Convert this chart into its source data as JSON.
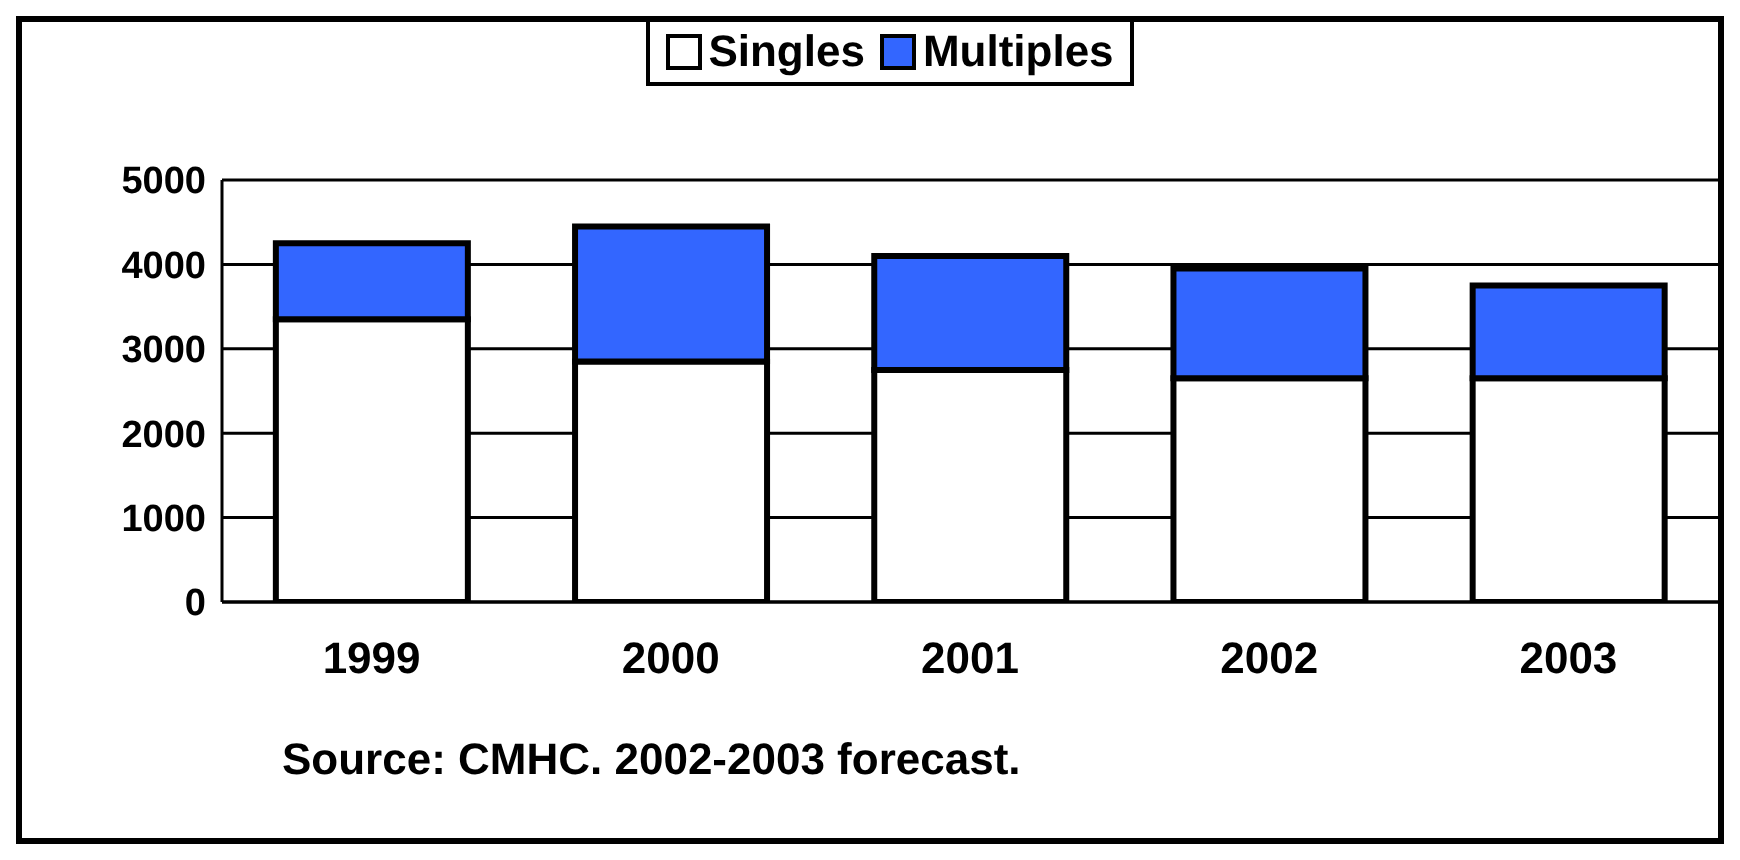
{
  "chart_data": {
    "type": "bar",
    "stacked": true,
    "categories": [
      "1999",
      "2000",
      "2001",
      "2002",
      "2003"
    ],
    "series": [
      {
        "name": "Singles",
        "color": "#ffffff",
        "values": [
          3350,
          2850,
          2750,
          2650,
          2650
        ]
      },
      {
        "name": "Multiples",
        "color": "#3366ff",
        "values": [
          900,
          1600,
          1350,
          1300,
          1100
        ]
      }
    ],
    "ylim": [
      0,
      5000
    ],
    "yticks": [
      0,
      1000,
      2000,
      3000,
      4000,
      5000
    ],
    "grid": "y",
    "legend": "top",
    "annotations": [
      "Source: CMHC. 2002-2003 forecast."
    ]
  }
}
